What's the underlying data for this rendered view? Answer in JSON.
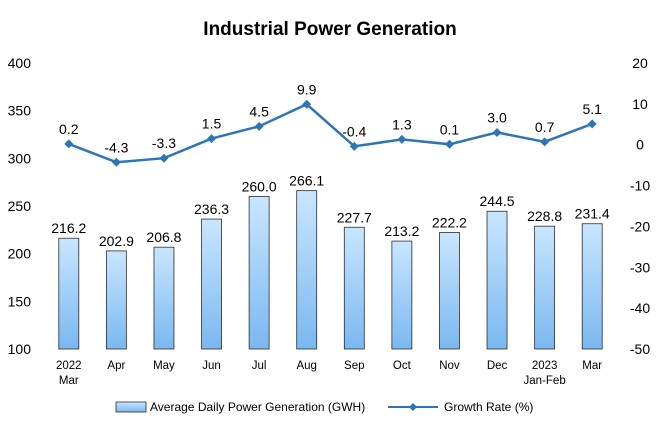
{
  "chart_data": {
    "type": "bar",
    "title": "Industrial Power Generation",
    "categories": [
      [
        "2022",
        "Mar"
      ],
      [
        "Apr"
      ],
      [
        "May"
      ],
      [
        "Jun"
      ],
      [
        "Jul"
      ],
      [
        "Aug"
      ],
      [
        "Sep"
      ],
      [
        "Oct"
      ],
      [
        "Nov"
      ],
      [
        "Dec"
      ],
      [
        "2023",
        "Jan-Feb"
      ],
      [
        "Mar"
      ]
    ],
    "series": [
      {
        "name": "Average Daily Power Generation (GWH)",
        "type": "bar",
        "axis": "left",
        "values": [
          216.2,
          202.9,
          206.8,
          236.3,
          260.0,
          266.1,
          227.7,
          213.2,
          222.2,
          244.5,
          228.8,
          231.4
        ],
        "labels": [
          "216.2",
          "202.9",
          "206.8",
          "236.3",
          "260.0",
          "266.1",
          "227.7",
          "213.2",
          "222.2",
          "244.5",
          "228.8",
          "231.4"
        ]
      },
      {
        "name": "Growth Rate (%)",
        "type": "line",
        "axis": "right",
        "values": [
          0.2,
          -4.3,
          -3.3,
          1.5,
          4.5,
          9.9,
          -0.4,
          1.3,
          0.1,
          3.0,
          0.7,
          5.1
        ],
        "labels": [
          "0.2",
          "-4.3",
          "-3.3",
          "1.5",
          "4.5",
          "9.9",
          "-0.4",
          "1.3",
          "0.1",
          "3.0",
          "0.7",
          "5.1"
        ]
      }
    ],
    "y_left": {
      "min": 100,
      "max": 400,
      "ticks": [
        "100",
        "150",
        "200",
        "250",
        "300",
        "350",
        "400"
      ]
    },
    "y_right": {
      "min": -50,
      "max": 20,
      "ticks": [
        "-50",
        "-40",
        "-30",
        "-20",
        "-10",
        "0",
        "10",
        "20"
      ]
    },
    "grid": false,
    "legend": "bottom",
    "colors": {
      "bar_top": "#c9e6ff",
      "bar_bottom": "#7ab8f0",
      "bar_stroke": "#2c2c2c",
      "line": "#2e75b6"
    }
  }
}
